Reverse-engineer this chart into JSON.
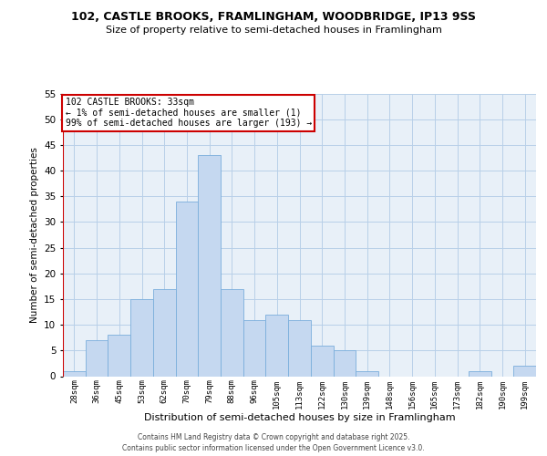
{
  "title1": "102, CASTLE BROOKS, FRAMLINGHAM, WOODBRIDGE, IP13 9SS",
  "title2": "Size of property relative to semi-detached houses in Framlingham",
  "xlabel": "Distribution of semi-detached houses by size in Framlingham",
  "ylabel": "Number of semi-detached properties",
  "bin_labels": [
    "28sqm",
    "36sqm",
    "45sqm",
    "53sqm",
    "62sqm",
    "70sqm",
    "79sqm",
    "88sqm",
    "96sqm",
    "105sqm",
    "113sqm",
    "122sqm",
    "130sqm",
    "139sqm",
    "148sqm",
    "156sqm",
    "165sqm",
    "173sqm",
    "182sqm",
    "190sqm",
    "199sqm"
  ],
  "bar_heights": [
    1,
    7,
    8,
    15,
    17,
    34,
    43,
    17,
    11,
    12,
    11,
    6,
    5,
    1,
    0,
    0,
    0,
    0,
    1,
    0,
    2
  ],
  "bar_color": "#c5d8f0",
  "bar_edge_color": "#7aaedc",
  "ylim": [
    0,
    55
  ],
  "yticks": [
    0,
    5,
    10,
    15,
    20,
    25,
    30,
    35,
    40,
    45,
    50,
    55
  ],
  "annotation_title": "102 CASTLE BROOKS: 33sqm",
  "annotation_line1": "← 1% of semi-detached houses are smaller (1)",
  "annotation_line2": "99% of semi-detached houses are larger (193) →",
  "footer1": "Contains HM Land Registry data © Crown copyright and database right 2025.",
  "footer2": "Contains public sector information licensed under the Open Government Licence v3.0.",
  "bg_color": "#ffffff",
  "plot_bg_color": "#e8f0f8",
  "grid_color": "#b8cfe8",
  "annotation_box_edge": "#cc0000",
  "vline_color": "#cc0000"
}
